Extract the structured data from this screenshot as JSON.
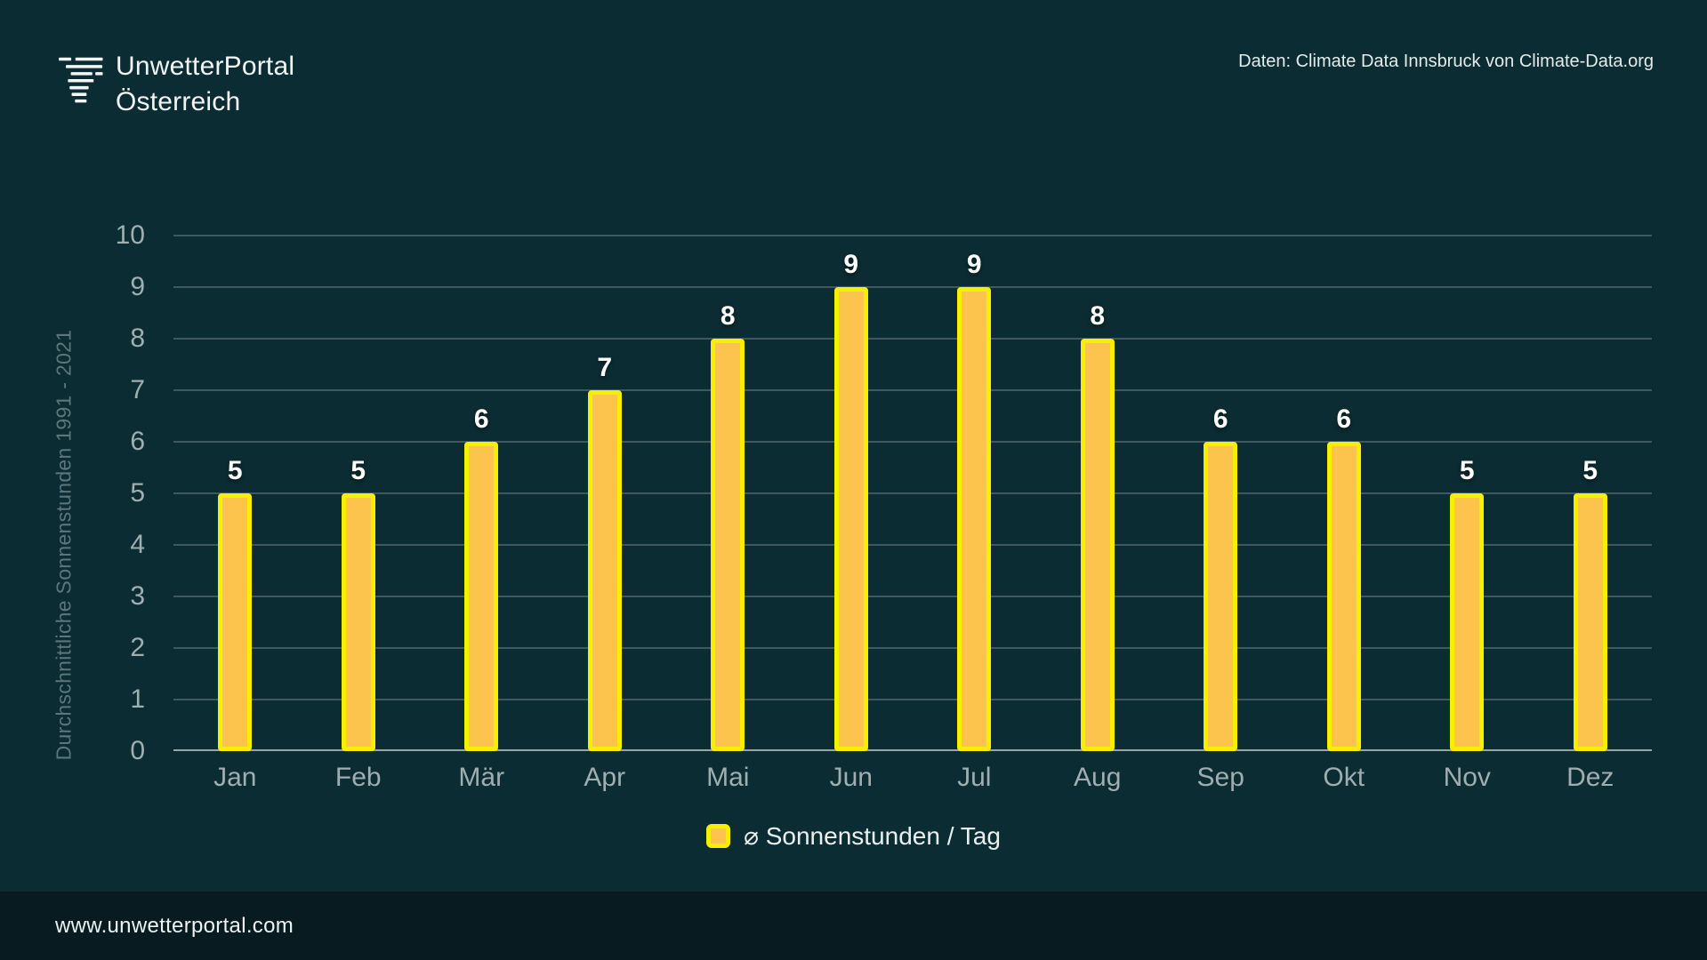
{
  "header": {
    "logo_line1": "UnwetterPortal",
    "logo_line2": "Österreich",
    "logo_icon": "tornado-stripes-icon",
    "attribution": "Daten: Climate Data Innsbruck von Climate-Data.org"
  },
  "footer": {
    "url": "www.unwetterportal.com"
  },
  "chart_data": {
    "type": "bar",
    "title": "",
    "categories": [
      "Jan",
      "Feb",
      "Mär",
      "Apr",
      "Mai",
      "Jun",
      "Jul",
      "Aug",
      "Sep",
      "Okt",
      "Nov",
      "Dez"
    ],
    "values": [
      5,
      5,
      6,
      7,
      8,
      9,
      9,
      8,
      6,
      6,
      5,
      5
    ],
    "xlabel": "",
    "ylabel": "Durchschnittliche Sonnenstunden 1991 - 2021",
    "ylim": [
      0,
      10
    ],
    "ytick_step": 1,
    "grid": true,
    "value_labels_shown": true,
    "legend": {
      "label": "⌀ Sonnenstunden / Tag",
      "swatch_icon": "yellow-square-swatch",
      "position": "bottom-center"
    },
    "colors": {
      "background": "#0B2C32",
      "footer_background": "#081B21",
      "bar_fill": "#FCC44D",
      "bar_border": "#F6F000",
      "gridline": "#3F585E",
      "axis_line": "#97A6A9",
      "tick_label": "#9FAEB0",
      "value_label": "#FFFFFF",
      "ylabel_color": "#5C767B"
    }
  }
}
